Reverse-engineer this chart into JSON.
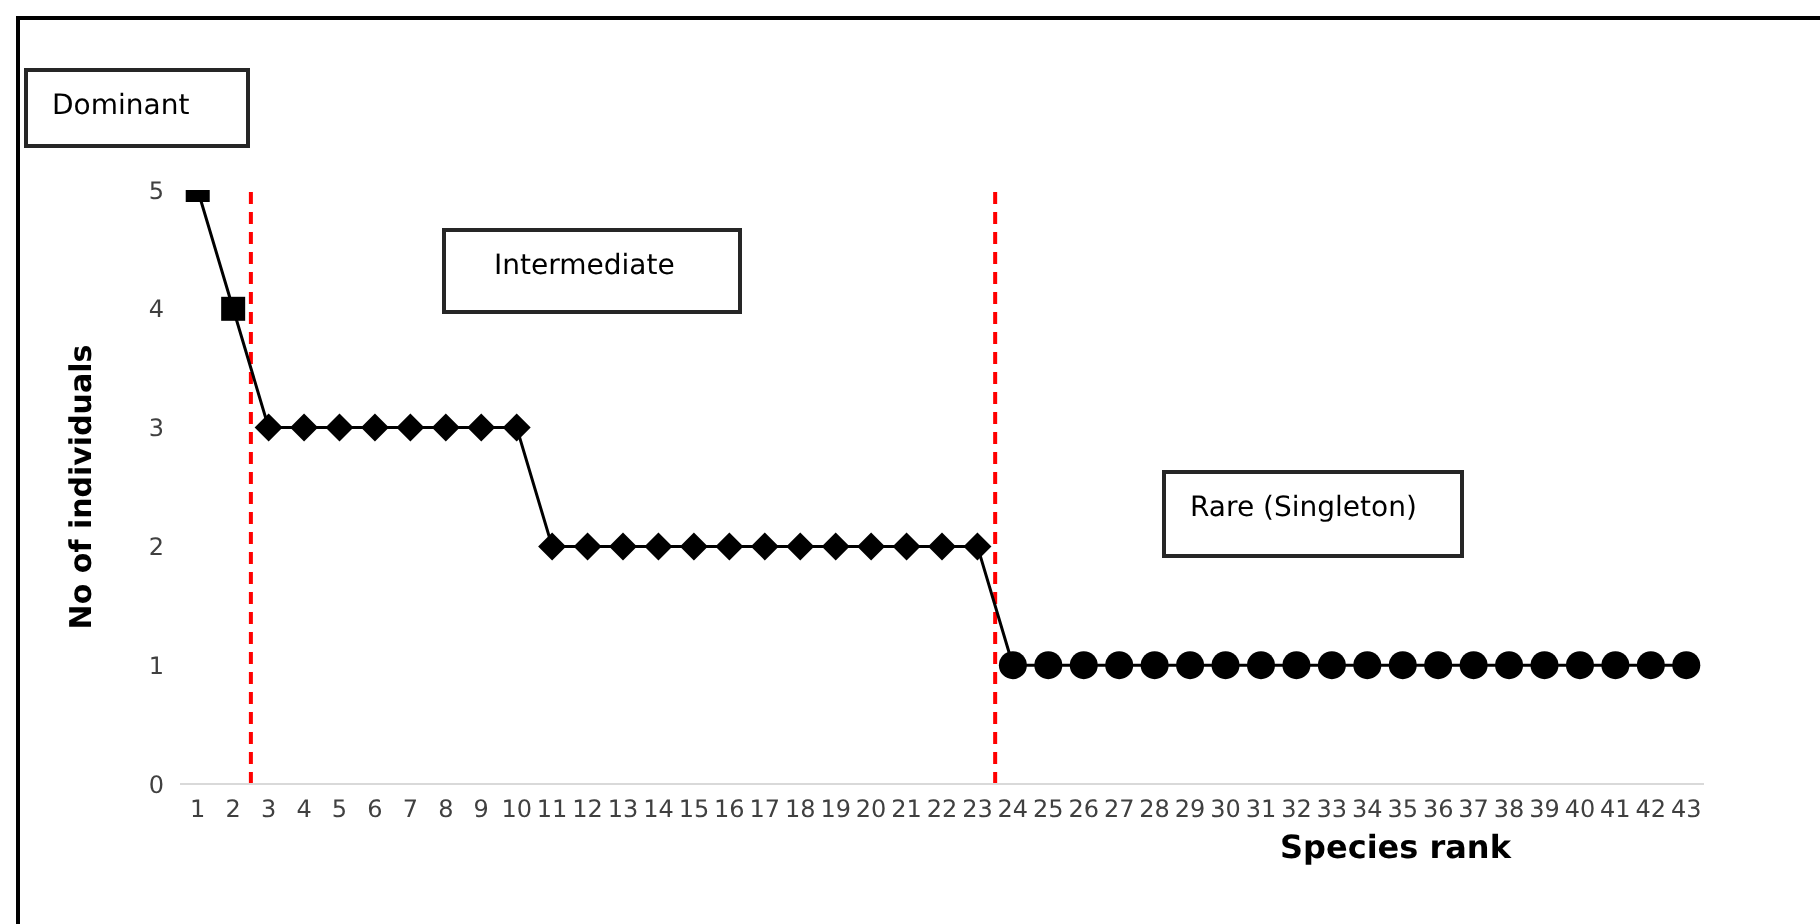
{
  "chart_data": {
    "type": "line",
    "xlabel": "Species rank",
    "ylabel": "No of individuals",
    "x": [
      1,
      2,
      3,
      4,
      5,
      6,
      7,
      8,
      9,
      10,
      11,
      12,
      13,
      14,
      15,
      16,
      17,
      18,
      19,
      20,
      21,
      22,
      23,
      24,
      25,
      26,
      27,
      28,
      29,
      30,
      31,
      32,
      33,
      34,
      35,
      36,
      37,
      38,
      39,
      40,
      41,
      42,
      43
    ],
    "xlim": [
      0.5,
      43.5
    ],
    "xticks": [
      1,
      2,
      3,
      4,
      5,
      6,
      7,
      8,
      9,
      10,
      11,
      12,
      13,
      14,
      15,
      16,
      17,
      18,
      19,
      20,
      21,
      22,
      23,
      24,
      25,
      26,
      27,
      28,
      29,
      30,
      31,
      32,
      33,
      34,
      35,
      36,
      37,
      38,
      39,
      40,
      41,
      42,
      43
    ],
    "ylim": [
      0,
      5
    ],
    "yticks": [
      0,
      1,
      2,
      3,
      4,
      5
    ],
    "series": [
      {
        "marker": "none",
        "color": "#000000",
        "values": [
          5,
          4,
          3,
          3,
          3,
          3,
          3,
          3,
          3,
          3,
          2,
          2,
          2,
          2,
          2,
          2,
          2,
          2,
          2,
          2,
          2,
          2,
          2,
          1,
          1,
          1,
          1,
          1,
          1,
          1,
          1,
          1,
          1,
          1,
          1,
          1,
          1,
          1,
          1,
          1,
          1,
          1,
          1
        ]
      },
      {
        "type": "scatter",
        "marker": "square",
        "color": "#000000",
        "x": [
          1,
          2
        ],
        "values": [
          5,
          4
        ]
      },
      {
        "type": "scatter",
        "marker": "diamond",
        "color": "#000000",
        "x": [
          3,
          4,
          5,
          6,
          7,
          8,
          9,
          10,
          11,
          12,
          13,
          14,
          15,
          16,
          17,
          18,
          19,
          20,
          21,
          22,
          23
        ],
        "values": [
          3,
          3,
          3,
          3,
          3,
          3,
          3,
          3,
          2,
          2,
          2,
          2,
          2,
          2,
          2,
          2,
          2,
          2,
          2,
          2,
          2
        ]
      },
      {
        "type": "scatter",
        "marker": "circle",
        "color": "#000000",
        "x": [
          24,
          25,
          26,
          27,
          28,
          29,
          30,
          31,
          32,
          33,
          34,
          35,
          36,
          37,
          38,
          39,
          40,
          41,
          42,
          43
        ],
        "values": [
          1,
          1,
          1,
          1,
          1,
          1,
          1,
          1,
          1,
          1,
          1,
          1,
          1,
          1,
          1,
          1,
          1,
          1,
          1,
          1
        ]
      }
    ],
    "ref_lines": [
      {
        "axis": "x",
        "value": 2.5,
        "color": "#ff0000",
        "line_style": "dashed"
      },
      {
        "axis": "x",
        "value": 23.5,
        "color": "#ff0000",
        "line_style": "dashed"
      }
    ],
    "annotations": [
      "Dominant",
      "Intermediate",
      "Rare (Singleton)"
    ]
  }
}
